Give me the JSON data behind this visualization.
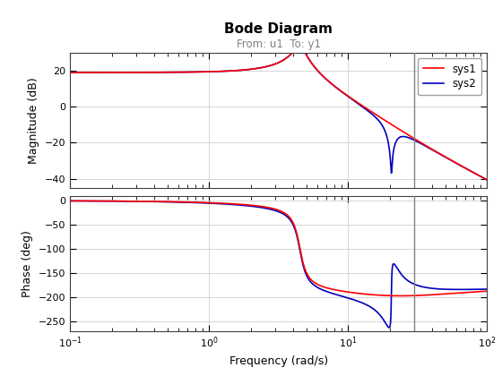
{
  "title": "Bode Diagram",
  "subtitle": "From: u1  To: y1",
  "xlabel": "Frequency (rad/s)",
  "ylabel_mag": "Magnitude (dB)",
  "ylabel_phase": "Phase (deg)",
  "legend": [
    "sys1",
    "sys2"
  ],
  "colors": [
    "#ff0000",
    "#0000bb"
  ],
  "vline_freq": 30.0,
  "vline_color": "#808080",
  "mag_ylim": [
    -45,
    30
  ],
  "mag_yticks": [
    -40,
    -20,
    0,
    20
  ],
  "phase_ylim": [
    -270,
    10
  ],
  "phase_yticks": [
    -250,
    -200,
    -150,
    -100,
    -50,
    0
  ],
  "freq_xlim": [
    0.1,
    100
  ],
  "background": "#ffffff"
}
